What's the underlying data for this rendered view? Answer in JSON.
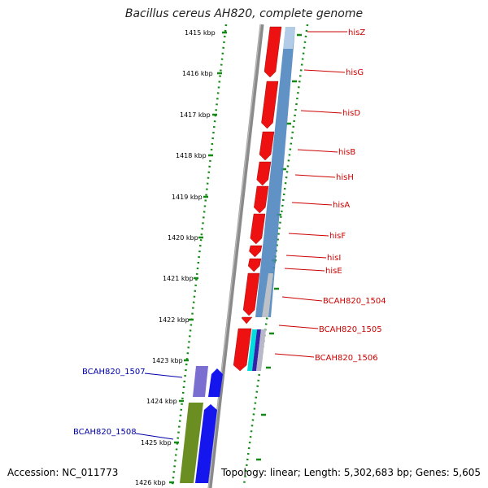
{
  "title": "Bacillus cereus AH820, complete genome",
  "footer": {
    "accession": "Accession: NC_011773",
    "stats": "Topology: linear; Length: 5,302,683 bp; Genes: 5,605"
  },
  "colors": {
    "backbone": "#808080",
    "ruler": "#138a13",
    "forward_gene": "#ee1111",
    "reverse_gene": "#1515ee",
    "forward_label": "#cc0000",
    "reverse_label": "#0000aa",
    "operon": "#4f86c0",
    "pseudo": "#7a6fd0",
    "olive": "#6b8e23",
    "cyan": "#00dddd"
  },
  "ruler_kbp": [
    "1415 kbp",
    "1416 kbp",
    "1417 kbp",
    "1418 kbp",
    "1419 kbp",
    "1420 kbp",
    "1421 kbp",
    "1422 kbp",
    "1423 kbp",
    "1424 kbp",
    "1425 kbp",
    "1426 kbp"
  ],
  "forward_genes": [
    {
      "label": "hisZ"
    },
    {
      "label": "hisG"
    },
    {
      "label": "hisD"
    },
    {
      "label": "hisB"
    },
    {
      "label": "hisH"
    },
    {
      "label": "hisA"
    },
    {
      "label": "hisF"
    },
    {
      "label": "hisI"
    },
    {
      "label": "hisE"
    },
    {
      "label": "BCAH820_1504"
    },
    {
      "label": "BCAH820_1505"
    },
    {
      "label": "BCAH820_1506"
    }
  ],
  "reverse_genes": [
    {
      "label": "BCAH820_1507"
    },
    {
      "label": "BCAH820_1508"
    }
  ]
}
